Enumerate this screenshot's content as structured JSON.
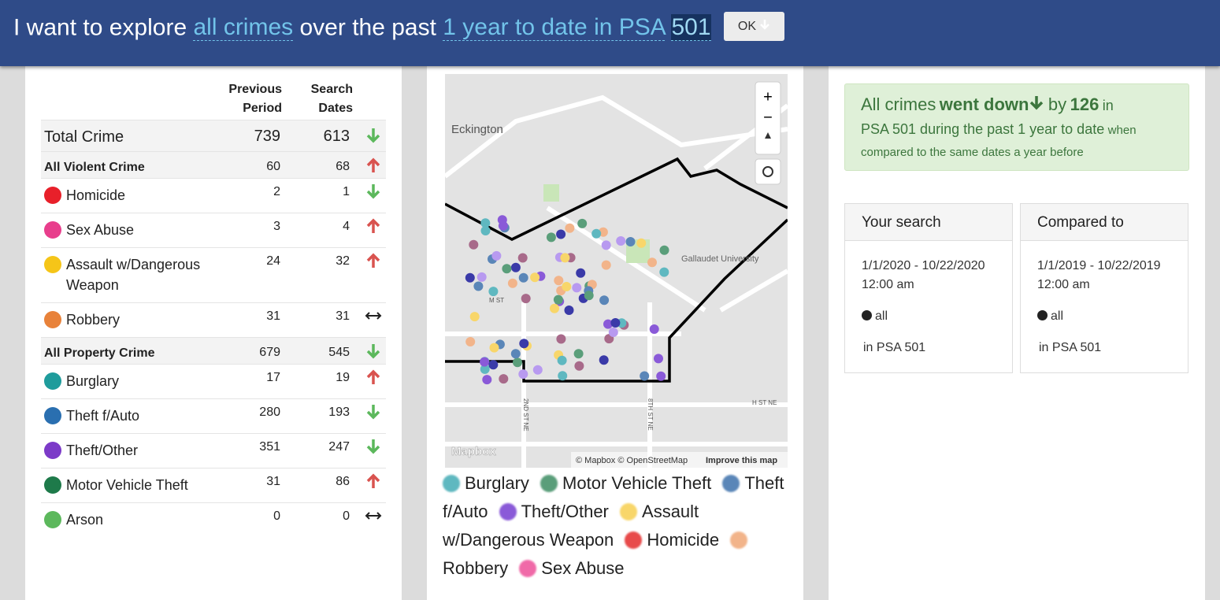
{
  "header": {
    "prefix": "I want to explore",
    "crime": "all crimes",
    "middle": "over the past",
    "period": "1 year to date in PSA",
    "psa": "501",
    "ok": "OK"
  },
  "table": {
    "headers": [
      "Previous Period",
      "Search Dates"
    ],
    "rows": [
      {
        "label": "Total Crime",
        "previous": 739,
        "search": 613,
        "kind": "total"
      },
      {
        "label": "All Violent Crime",
        "previous": 60,
        "search": 68,
        "kind": "group"
      },
      {
        "label": "Homicide",
        "previous": 2,
        "search": 1,
        "kind": "item"
      },
      {
        "label": "Sex Abuse",
        "previous": 3,
        "search": 4,
        "kind": "item"
      },
      {
        "label": "Assault w/Dangerous Weapon",
        "previous": 24,
        "search": 32,
        "kind": "item"
      },
      {
        "label": "Robbery",
        "previous": 31,
        "search": 31,
        "kind": "item"
      },
      {
        "label": "All Property Crime",
        "previous": 679,
        "search": 545,
        "kind": "group"
      },
      {
        "label": "Burglary",
        "previous": 17,
        "search": 19,
        "kind": "item"
      },
      {
        "label": "Theft f/Auto",
        "previous": 280,
        "search": 193,
        "kind": "item"
      },
      {
        "label": "Theft/Other",
        "previous": 351,
        "search": 247,
        "kind": "item"
      },
      {
        "label": "Motor Vehicle Theft",
        "previous": 31,
        "search": 86,
        "kind": "item"
      },
      {
        "label": "Arson",
        "previous": 0,
        "search": 0,
        "kind": "item"
      }
    ]
  },
  "map": {
    "places": [
      "Eckington",
      "Gallaudet University",
      "M ST",
      "2ND ST NE",
      "8TH ST NE",
      "H ST NE"
    ],
    "logo": "Mapbox",
    "attribution": "© Mapbox © OpenStreetMap",
    "improve": "Improve this map"
  },
  "legend": [
    "Burglary",
    "Motor Vehicle Theft",
    "Theft f/Auto",
    "Theft/Other",
    "Assault w/Dangerous Weapon",
    "Homicide",
    "Robbery",
    "Sex Abuse"
  ],
  "summary": {
    "subject": "All crimes",
    "direction": "went down",
    "by": "by",
    "amount": "126",
    "in": "in",
    "scope": "PSA 501 during the past 1 year to date",
    "tail": "when compared to the same dates a year before"
  },
  "cards": [
    {
      "title": "Your search",
      "dates": "1/1/2020 - 10/22/2020 12:00 am",
      "crime": "all",
      "place": "in PSA 501"
    },
    {
      "title": "Compared to",
      "dates": "1/1/2019 - 10/22/2019 12:00 am",
      "crime": "all",
      "place": "in PSA 501"
    }
  ]
}
